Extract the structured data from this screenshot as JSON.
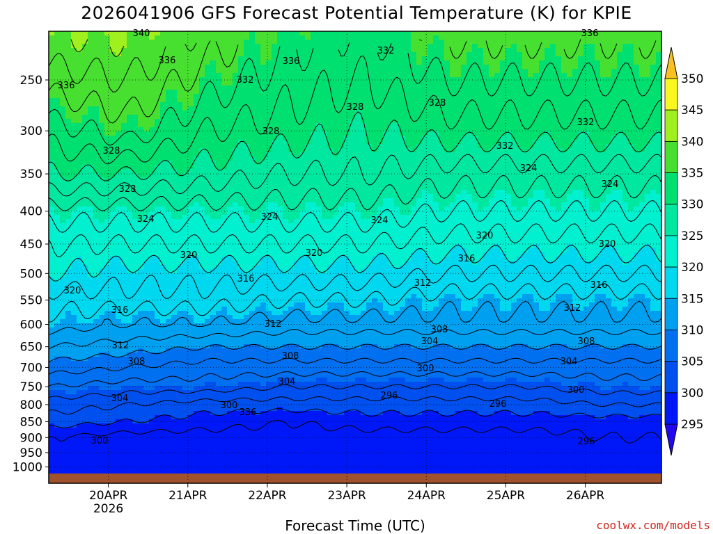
{
  "chart_data": {
    "type": "heatmap",
    "title": "2026041906 GFS Forecast Potential Temperature (K) for KPIE",
    "xlabel": "Forecast Time (UTC)",
    "ylabel": "",
    "credit": "coolwx.com/models",
    "y_pressure_hPa": [
      1000,
      950,
      900,
      850,
      800,
      750,
      700,
      650,
      600,
      550,
      500,
      450,
      400,
      350,
      300,
      250
    ],
    "y_tick_labels": [
      "1000",
      "950",
      "900",
      "850",
      "800",
      "750",
      "700",
      "650",
      "600",
      "550",
      "500",
      "450",
      "400",
      "350",
      "300",
      "250"
    ],
    "x_tick_labels": [
      "20APR",
      "21APR",
      "22APR",
      "23APR",
      "24APR",
      "25APR",
      "26APR"
    ],
    "x_year_label": "2026",
    "colorbar": {
      "levels": [
        295,
        300,
        305,
        310,
        315,
        320,
        325,
        330,
        335,
        340,
        345,
        350
      ],
      "labels": [
        "295",
        "300",
        "305",
        "310",
        "315",
        "320",
        "325",
        "330",
        "335",
        "340",
        "345",
        "350"
      ],
      "colors": [
        "#2208f0",
        "#0018f8",
        "#0050f0",
        "#0070f0",
        "#00a0f0",
        "#00d8f0",
        "#00f0d0",
        "#00e8a0",
        "#00e070",
        "#48e030",
        "#a0f020",
        "#f8f820",
        "#f8c020"
      ]
    },
    "contour_labels": [
      "340",
      "336",
      "336",
      "336",
      "336",
      "332",
      "332",
      "332",
      "332",
      "328",
      "328",
      "328",
      "328",
      "328",
      "324",
      "324",
      "324",
      "324",
      "324",
      "320",
      "320",
      "320",
      "320",
      "320",
      "316",
      "316",
      "316",
      "316",
      "312",
      "312",
      "312",
      "312",
      "308",
      "308",
      "308",
      "308",
      "304",
      "304",
      "304",
      "304",
      "300",
      "300",
      "300",
      "300",
      "296",
      "296",
      "296",
      "336"
    ],
    "profile_hours": [
      0,
      24,
      48,
      72,
      96,
      120,
      144,
      168
    ],
    "theta_profiles_K": [
      [
        297,
        297,
        298,
        301,
        303,
        306,
        309,
        312,
        315,
        317,
        320,
        322,
        325,
        330,
        333,
        337
      ],
      [
        297,
        297,
        297,
        300,
        302,
        305,
        308,
        311,
        314,
        317,
        319,
        322,
        325,
        330,
        335,
        338
      ],
      [
        297,
        297,
        297,
        299,
        301,
        305,
        307,
        310,
        314,
        317,
        319,
        322,
        325,
        329,
        332,
        335
      ],
      [
        297,
        297,
        297,
        298,
        301,
        304,
        307,
        310,
        313,
        316,
        319,
        322,
        325,
        328,
        331,
        333
      ],
      [
        297,
        297,
        297,
        299,
        301,
        304,
        307,
        310,
        313,
        316,
        319,
        322,
        325,
        328,
        330,
        332
      ],
      [
        297,
        297,
        297,
        299,
        301,
        304,
        307,
        310,
        313,
        315,
        318,
        321,
        324,
        327,
        331,
        334
      ],
      [
        297,
        297,
        297,
        299,
        301,
        304,
        307,
        310,
        313,
        315,
        318,
        321,
        324,
        327,
        331,
        334
      ],
      [
        297,
        297,
        298,
        299,
        302,
        305,
        307,
        310,
        313,
        315,
        318,
        321,
        324,
        327,
        331,
        334
      ]
    ],
    "grid": true
  }
}
